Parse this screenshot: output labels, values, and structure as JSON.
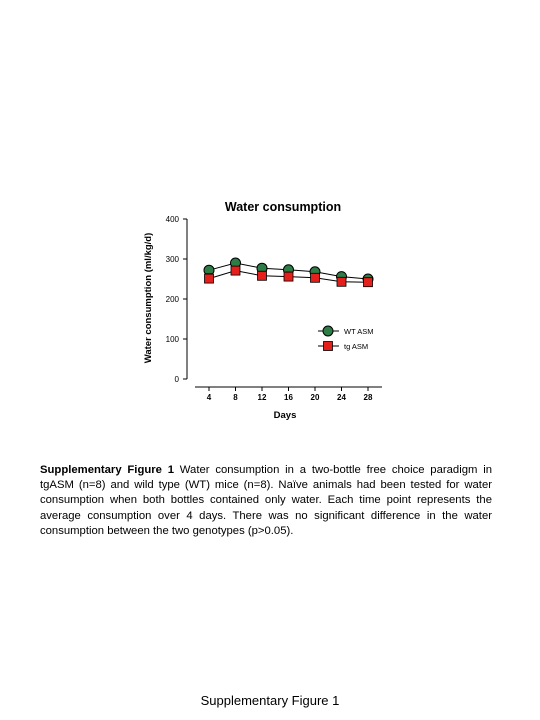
{
  "chart_data": {
    "type": "line",
    "title": "Water consumption",
    "xlabel": "Days",
    "ylabel": "Water consumption (ml/kg/d)",
    "x": [
      4,
      8,
      12,
      16,
      20,
      24,
      28
    ],
    "xticks": [
      "4",
      "8",
      "12",
      "16",
      "20",
      "24",
      "28"
    ],
    "ylim": [
      0,
      400
    ],
    "yticks": [
      "0",
      "100",
      "200",
      "300",
      "400"
    ],
    "grid": false,
    "legend_position": "right",
    "series": [
      {
        "name": "WT ASM",
        "marker": "circle",
        "color": "#2e7d46",
        "values": [
          272,
          290,
          277,
          273,
          268,
          256,
          250
        ],
        "errors": [
          9,
          9,
          8,
          8,
          8,
          8,
          7
        ]
      },
      {
        "name": "tg ASM",
        "marker": "square",
        "color": "#e3201b",
        "values": [
          251,
          271,
          258,
          256,
          253,
          243,
          242
        ],
        "errors": [
          12,
          10,
          11,
          11,
          10,
          9,
          9
        ]
      }
    ]
  },
  "caption": {
    "label": "Supplementary Figure 1",
    "text": " Water consumption in a two-bottle free choice paradigm in tgASM (n=8) and wild type (WT) mice (n=8). Naïve animals had been tested for water consumption when both bottles contained only water. Each time point represents the average consumption over 4 days. There was no significant difference in the water consumption between the two genotypes (p>0.05)."
  },
  "footer": "Supplementary Figure 1"
}
